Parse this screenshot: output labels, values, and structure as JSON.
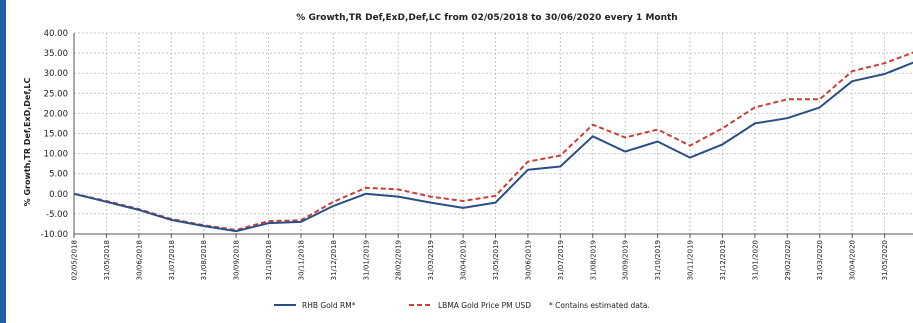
{
  "chart_data": {
    "type": "line",
    "title": "% Growth,TR Def,ExD,Def,LC from 02/05/2018 to 30/06/2020 every 1 Month",
    "ylabel": "% Growth,TR Def,ExD,Def,LC",
    "ylim": [
      -10,
      40
    ],
    "yticks": [
      "-10.00",
      "-5.00",
      "0.00",
      "5.00",
      "10.00",
      "15.00",
      "20.00",
      "25.00",
      "30.00",
      "35.00",
      "40.00"
    ],
    "categories": [
      "02/05/2018",
      "31/05/2018",
      "30/06/2018",
      "31/07/2018",
      "31/08/2018",
      "30/09/2018",
      "31/10/2018",
      "30/11/2018",
      "31/12/2018",
      "31/01/2019",
      "28/02/2019",
      "31/03/2019",
      "30/04/2019",
      "31/05/2019",
      "30/06/2019",
      "31/07/2019",
      "31/08/2019",
      "30/09/2019",
      "31/10/2019",
      "30/11/2019",
      "31/12/2019",
      "31/01/2020",
      "29/02/2020",
      "31/03/2020",
      "30/04/2020",
      "31/05/2020",
      "30/06/2020"
    ],
    "grid": true,
    "legend_position": "bottom",
    "series": [
      {
        "name": "RHB Gold RM*",
        "color": "#2a4f86",
        "style": "solid",
        "values": [
          0,
          -2.0,
          -4.0,
          -6.5,
          -8.0,
          -9.3,
          -7.3,
          -7.0,
          -3.0,
          0.0,
          -0.7,
          -2.2,
          -3.5,
          -2.2,
          6.0,
          6.8,
          14.3,
          10.5,
          13.0,
          9.0,
          12.3,
          17.5,
          18.8,
          21.5,
          28.0,
          29.8,
          33.0
        ]
      },
      {
        "name": "LBMA Gold Price PM USD",
        "color": "#c9403a",
        "style": "dashed",
        "values": [
          0,
          -1.8,
          -3.8,
          -6.3,
          -7.8,
          -9.0,
          -6.8,
          -6.6,
          -2.0,
          1.5,
          1.1,
          -0.7,
          -1.8,
          -0.5,
          8.0,
          9.5,
          17.2,
          14.0,
          16.0,
          12.0,
          16.3,
          21.5,
          23.5,
          23.5,
          30.5,
          32.5,
          35.5
        ]
      }
    ],
    "note": "* Contains estimated data."
  }
}
